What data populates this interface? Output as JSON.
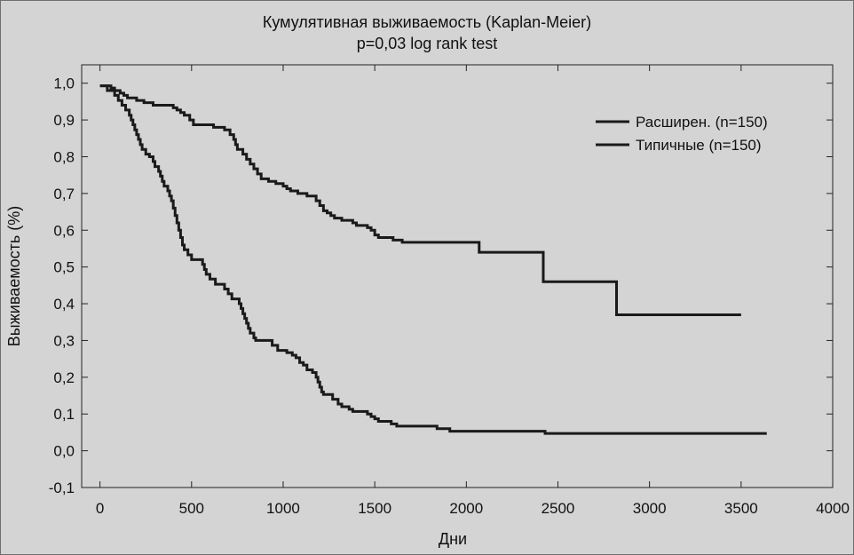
{
  "chart_data": {
    "type": "line",
    "step": true,
    "title": "Кумулятивная выживаемость (Kaplan-Meier)",
    "subtitle": "p=0,03 log rank test",
    "xlabel": "Дни",
    "ylabel": "Выживаемость (%)",
    "xlim": [
      -100,
      4000
    ],
    "ylim": [
      -0.1,
      1.05
    ],
    "xticks": [
      0,
      500,
      1000,
      1500,
      2000,
      2500,
      3000,
      3500,
      4000
    ],
    "xtick_labels": [
      "0",
      "500",
      "1000",
      "1500",
      "2000",
      "2500",
      "3000",
      "3500",
      "4000"
    ],
    "yticks": [
      -0.1,
      0.0,
      0.1,
      0.2,
      0.3,
      0.4,
      0.5,
      0.6,
      0.7,
      0.8,
      0.9,
      1.0
    ],
    "ytick_labels": [
      "-0,1",
      "0,0",
      "0,1",
      "0,2",
      "0,3",
      "0,4",
      "0,5",
      "0,6",
      "0,7",
      "0,8",
      "0,9",
      "1,0"
    ],
    "grid": false,
    "legend_position": "top-right",
    "series": [
      {
        "name": "Расширен. (n=150)",
        "color": "#1a1a1a",
        "points": [
          [
            0,
            0.993
          ],
          [
            60,
            0.987
          ],
          [
            80,
            0.98
          ],
          [
            110,
            0.973
          ],
          [
            130,
            0.967
          ],
          [
            150,
            0.96
          ],
          [
            200,
            0.953
          ],
          [
            240,
            0.947
          ],
          [
            290,
            0.94
          ],
          [
            400,
            0.933
          ],
          [
            420,
            0.927
          ],
          [
            440,
            0.92
          ],
          [
            460,
            0.913
          ],
          [
            490,
            0.9
          ],
          [
            510,
            0.887
          ],
          [
            620,
            0.88
          ],
          [
            680,
            0.873
          ],
          [
            710,
            0.86
          ],
          [
            730,
            0.847
          ],
          [
            740,
            0.833
          ],
          [
            750,
            0.82
          ],
          [
            780,
            0.807
          ],
          [
            800,
            0.793
          ],
          [
            820,
            0.78
          ],
          [
            840,
            0.767
          ],
          [
            860,
            0.753
          ],
          [
            880,
            0.74
          ],
          [
            920,
            0.733
          ],
          [
            960,
            0.727
          ],
          [
            1000,
            0.72
          ],
          [
            1020,
            0.713
          ],
          [
            1040,
            0.707
          ],
          [
            1080,
            0.7
          ],
          [
            1130,
            0.693
          ],
          [
            1180,
            0.68
          ],
          [
            1200,
            0.667
          ],
          [
            1220,
            0.653
          ],
          [
            1240,
            0.647
          ],
          [
            1260,
            0.64
          ],
          [
            1280,
            0.633
          ],
          [
            1320,
            0.627
          ],
          [
            1380,
            0.62
          ],
          [
            1400,
            0.613
          ],
          [
            1460,
            0.607
          ],
          [
            1480,
            0.6
          ],
          [
            1500,
            0.587
          ],
          [
            1520,
            0.58
          ],
          [
            1600,
            0.573
          ],
          [
            1650,
            0.567
          ],
          [
            2070,
            0.54
          ],
          [
            2420,
            0.46
          ],
          [
            2820,
            0.37
          ],
          [
            3500,
            0.37
          ]
        ]
      },
      {
        "name": "Типичные (n=150)",
        "color": "#1a1a1a",
        "points": [
          [
            0,
            0.993
          ],
          [
            40,
            0.98
          ],
          [
            80,
            0.967
          ],
          [
            100,
            0.953
          ],
          [
            120,
            0.94
          ],
          [
            140,
            0.927
          ],
          [
            160,
            0.913
          ],
          [
            170,
            0.9
          ],
          [
            180,
            0.887
          ],
          [
            190,
            0.873
          ],
          [
            200,
            0.86
          ],
          [
            210,
            0.847
          ],
          [
            220,
            0.833
          ],
          [
            230,
            0.82
          ],
          [
            250,
            0.807
          ],
          [
            270,
            0.8
          ],
          [
            290,
            0.787
          ],
          [
            300,
            0.773
          ],
          [
            320,
            0.76
          ],
          [
            330,
            0.747
          ],
          [
            340,
            0.733
          ],
          [
            350,
            0.72
          ],
          [
            370,
            0.707
          ],
          [
            380,
            0.693
          ],
          [
            390,
            0.68
          ],
          [
            400,
            0.66
          ],
          [
            410,
            0.64
          ],
          [
            420,
            0.62
          ],
          [
            430,
            0.6
          ],
          [
            440,
            0.58
          ],
          [
            450,
            0.56
          ],
          [
            460,
            0.547
          ],
          [
            480,
            0.533
          ],
          [
            500,
            0.52
          ],
          [
            560,
            0.507
          ],
          [
            570,
            0.493
          ],
          [
            580,
            0.48
          ],
          [
            600,
            0.467
          ],
          [
            630,
            0.453
          ],
          [
            680,
            0.44
          ],
          [
            700,
            0.427
          ],
          [
            720,
            0.413
          ],
          [
            760,
            0.4
          ],
          [
            770,
            0.387
          ],
          [
            780,
            0.373
          ],
          [
            790,
            0.36
          ],
          [
            800,
            0.347
          ],
          [
            810,
            0.333
          ],
          [
            820,
            0.32
          ],
          [
            840,
            0.307
          ],
          [
            850,
            0.3
          ],
          [
            940,
            0.287
          ],
          [
            970,
            0.273
          ],
          [
            1020,
            0.267
          ],
          [
            1050,
            0.26
          ],
          [
            1070,
            0.253
          ],
          [
            1090,
            0.24
          ],
          [
            1110,
            0.233
          ],
          [
            1130,
            0.22
          ],
          [
            1160,
            0.213
          ],
          [
            1180,
            0.2
          ],
          [
            1190,
            0.187
          ],
          [
            1200,
            0.173
          ],
          [
            1210,
            0.16
          ],
          [
            1220,
            0.153
          ],
          [
            1270,
            0.14
          ],
          [
            1300,
            0.127
          ],
          [
            1320,
            0.12
          ],
          [
            1360,
            0.113
          ],
          [
            1380,
            0.107
          ],
          [
            1460,
            0.1
          ],
          [
            1480,
            0.093
          ],
          [
            1500,
            0.087
          ],
          [
            1520,
            0.08
          ],
          [
            1590,
            0.073
          ],
          [
            1620,
            0.067
          ],
          [
            1840,
            0.06
          ],
          [
            1910,
            0.053
          ],
          [
            2430,
            0.047
          ],
          [
            3640,
            0.047
          ]
        ]
      }
    ]
  }
}
